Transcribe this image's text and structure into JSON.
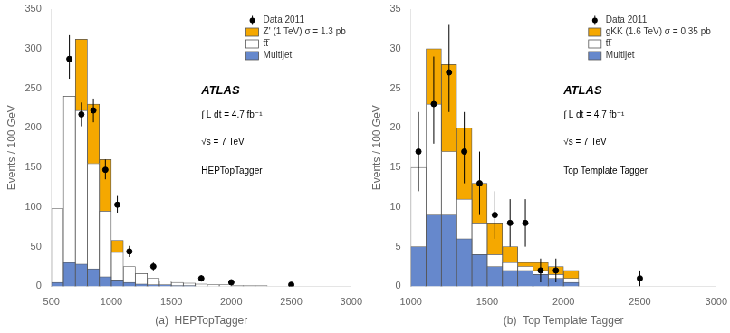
{
  "chart_data": [
    {
      "type": "histogram",
      "subtitle": "(a)  HEPTopTagger",
      "ylabel": "Events / 100 GeV",
      "bins": [
        500,
        600,
        700,
        800,
        900,
        1000,
        1100,
        1200,
        1300,
        1400,
        1500,
        1600,
        1700,
        1800,
        1900,
        2000,
        2100,
        2200,
        2300,
        2400,
        2500,
        2600,
        2700,
        2800,
        2900,
        3000
      ],
      "series": [
        {
          "name": "Data 2011",
          "type": "scatter",
          "marker": "circle",
          "color": "#000000",
          "x": [
            650,
            750,
            850,
            950,
            1050,
            1150,
            1350,
            1750,
            2000,
            2500
          ],
          "values": [
            287,
            217,
            222,
            147,
            103,
            44,
            25,
            10,
            5,
            2
          ],
          "error_low": [
            25,
            15,
            15,
            12,
            10,
            7,
            5,
            4,
            3,
            2
          ],
          "error_high": [
            30,
            15,
            15,
            13,
            11,
            7,
            5,
            4,
            3,
            2
          ]
        },
        {
          "name": "Z' (1 TeV) σ = 1.3 pb",
          "type": "bar",
          "color": "#F5A800",
          "values": [
            0,
            0,
            90,
            75,
            65,
            15,
            0,
            0,
            0,
            0,
            0,
            0,
            0,
            0,
            0,
            0,
            0,
            0,
            0,
            0,
            0,
            0,
            0,
            0,
            0
          ]
        },
        {
          "name": "tt̅",
          "type": "bar",
          "color": "#FFFFFF",
          "values": [
            98,
            240,
            222,
            155,
            95,
            43,
            25,
            16,
            10,
            7,
            5,
            4,
            3,
            2,
            2,
            1,
            1,
            1,
            0,
            0,
            0,
            0,
            0,
            0,
            0
          ]
        },
        {
          "name": "Multijet",
          "type": "bar",
          "color": "#6688CC",
          "values": [
            5,
            30,
            28,
            22,
            12,
            8,
            5,
            3,
            2,
            2,
            1,
            1,
            0,
            0,
            0,
            0,
            0,
            0,
            0,
            0,
            0,
            0,
            0,
            0,
            0
          ]
        }
      ],
      "stacked": [
        "tt̅",
        "Z' (1 TeV) σ = 1.3 pb"
      ],
      "xlim": [
        500,
        3000
      ],
      "xticks": [
        500,
        1000,
        1500,
        2000,
        2500,
        3000
      ],
      "ylim": [
        0,
        350
      ],
      "yticks": [
        0,
        50,
        100,
        150,
        200,
        250,
        300,
        350
      ],
      "grid": false,
      "legend": "upper right",
      "annotations": [
        "ATLAS",
        "∫ L dt = 4.7 fb⁻¹",
        "√s = 7 TeV",
        "HEPTopTagger"
      ]
    },
    {
      "type": "histogram",
      "subtitle": "(b)  Top Template Tagger",
      "ylabel": "Events / 100 GeV",
      "bins": [
        1000,
        1100,
        1200,
        1300,
        1400,
        1500,
        1600,
        1700,
        1800,
        1900,
        2000,
        2100,
        2200,
        2300,
        2400,
        2500,
        2600,
        2700,
        2800,
        2900,
        3000
      ],
      "series": [
        {
          "name": "Data 2011",
          "type": "scatter",
          "marker": "circle",
          "color": "#000000",
          "x": [
            1050,
            1150,
            1250,
            1350,
            1450,
            1550,
            1650,
            1750,
            1850,
            1950,
            2500
          ],
          "values": [
            17,
            23,
            27,
            17,
            13,
            9,
            8,
            8,
            2,
            2,
            1
          ],
          "error_low": [
            5,
            5,
            5,
            4,
            4,
            3,
            3,
            3,
            1.5,
            1.5,
            1
          ],
          "error_high": [
            5,
            6,
            6,
            5,
            4,
            3,
            3,
            3,
            1.5,
            1.5,
            1
          ]
        },
        {
          "name": "gKK (1.6 TeV) σ = 0.35 pb",
          "type": "bar",
          "color": "#F5A800",
          "values": [
            0,
            7,
            11,
            9,
            5,
            4,
            2,
            0.5,
            1,
            1,
            1,
            0,
            0,
            0,
            0,
            0,
            0,
            0,
            0,
            0
          ]
        },
        {
          "name": "tt̅",
          "type": "bar",
          "color": "#FFFFFF",
          "values": [
            15,
            23,
            17,
            11,
            8,
            4,
            3,
            2.5,
            2,
            1.5,
            1,
            0,
            0,
            0,
            0,
            0,
            0,
            0,
            0,
            0
          ]
        },
        {
          "name": "Multijet",
          "type": "bar",
          "color": "#6688CC",
          "values": [
            5,
            9,
            9,
            6,
            4,
            2.5,
            2,
            2,
            1.5,
            1,
            0.5,
            0,
            0,
            0,
            0,
            0,
            0,
            0,
            0,
            0
          ]
        }
      ],
      "stacked": [
        "tt̅",
        "gKK (1.6 TeV) σ = 0.35 pb"
      ],
      "xlim": [
        1000,
        3000
      ],
      "xticks": [
        1000,
        1500,
        2000,
        2500,
        3000
      ],
      "ylim": [
        0,
        35
      ],
      "yticks": [
        0,
        5,
        10,
        15,
        20,
        25,
        30,
        35
      ],
      "grid": false,
      "legend": "upper right",
      "annotations": [
        "ATLAS",
        "∫ L dt = 4.7 fb⁻¹",
        "√s = 7 TeV",
        "Top Template Tagger"
      ]
    }
  ]
}
